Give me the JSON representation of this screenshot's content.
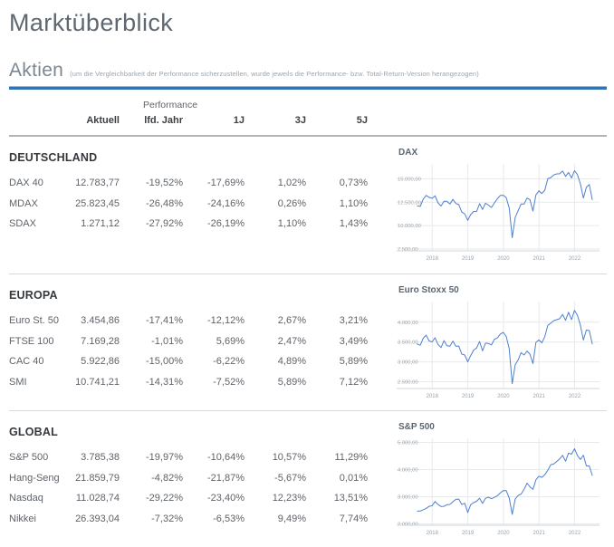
{
  "page": {
    "title": "Marktüberblick"
  },
  "aktien": {
    "heading": "Aktien",
    "note": "(um die Vergleichbarkeit der Performance sicherzustellen, wurde jeweils die Performance- bzw. Total-Return-Version herangezogen)"
  },
  "table": {
    "group_header": "Performance",
    "columns": [
      "Aktuell",
      "lfd. Jahr",
      "1J",
      "3J",
      "5J"
    ],
    "sections": [
      {
        "title": "DEUTSCHLAND",
        "rows": [
          {
            "name": "DAX 40",
            "values": [
              "12.783,77",
              "-19,52%",
              "-17,69%",
              "1,02%",
              "0,73%"
            ]
          },
          {
            "name": "MDAX",
            "values": [
              "25.823,45",
              "-26,48%",
              "-24,16%",
              "0,26%",
              "1,10%"
            ]
          },
          {
            "name": "SDAX",
            "values": [
              "1.271,12",
              "-27,92%",
              "-26,19%",
              "1,10%",
              "1,43%"
            ]
          }
        ]
      },
      {
        "title": "EUROPA",
        "rows": [
          {
            "name": "Euro St. 50",
            "values": [
              "3.454,86",
              "-17,41%",
              "-12,12%",
              "2,67%",
              "3,21%"
            ]
          },
          {
            "name": "FTSE 100",
            "values": [
              "7.169,28",
              "-1,01%",
              "5,69%",
              "2,47%",
              "3,49%"
            ]
          },
          {
            "name": "CAC 40",
            "values": [
              "5.922,86",
              "-15,00%",
              "-6,22%",
              "4,89%",
              "5,89%"
            ]
          },
          {
            "name": "SMI",
            "values": [
              "10.741,21",
              "-14,31%",
              "-7,52%",
              "5,89%",
              "7,12%"
            ]
          }
        ]
      },
      {
        "title": "GLOBAL",
        "rows": [
          {
            "name": "S&P 500",
            "values": [
              "3.785,38",
              "-19,97%",
              "-10,64%",
              "10,57%",
              "11,29%"
            ]
          },
          {
            "name": "Hang-Seng",
            "values": [
              "21.859,79",
              "-4,82%",
              "-21,87%",
              "-5,67%",
              "0,01%"
            ]
          },
          {
            "name": "Nasdaq",
            "values": [
              "11.028,74",
              "-29,22%",
              "-23,40%",
              "12,23%",
              "13,51%"
            ]
          },
          {
            "name": "Nikkei",
            "values": [
              "26.393,04",
              "-7,32%",
              "-6,53%",
              "9,49%",
              "7,74%"
            ]
          }
        ]
      }
    ]
  },
  "colors": {
    "accent_blue": "#3273b4",
    "chart_line": "#4e80ce",
    "gridline": "#e7e9eb",
    "axis": "#d2d5d8",
    "tick_text": "#9aa3ab"
  },
  "chart_data": [
    {
      "type": "line",
      "title": "DAX",
      "x_start": 2017.58,
      "x_step": 0.08333,
      "x_range": [
        2017.0,
        2022.7
      ],
      "y_range": [
        7300,
        16600
      ],
      "x_ticks": [
        {
          "label": "2018",
          "value": 2018
        },
        {
          "label": "2019",
          "value": 2019
        },
        {
          "label": "2020",
          "value": 2020
        },
        {
          "label": "2021",
          "value": 2021
        },
        {
          "label": "2022",
          "value": 2022
        }
      ],
      "y_ticks": [
        {
          "label": "15.000,00",
          "value": 15000
        },
        {
          "label": "12.500,00",
          "value": 12500
        },
        {
          "label": "10.000,00",
          "value": 10000
        },
        {
          "label": "7.500,00",
          "value": 7500
        }
      ],
      "values": [
        12118,
        12056,
        12829,
        13230,
        13024,
        12918,
        13189,
        12436,
        12097,
        12612,
        12604,
        12306,
        12805,
        12364,
        12247,
        11448,
        11257,
        10559,
        11173,
        11515,
        11526,
        12344,
        11727,
        12399,
        12189,
        11939,
        12428,
        12867,
        13236,
        13249,
        12982,
        11890,
        8700,
        10862,
        11587,
        12311,
        12313,
        12945,
        12761,
        11556,
        13291,
        13719,
        13433,
        13786,
        15008,
        15136,
        15421,
        15531,
        15544,
        15835,
        15261,
        15689,
        15100,
        15885,
        15471,
        14461,
        12950,
        14098,
        14388,
        12784
      ]
    },
    {
      "type": "line",
      "title": "Euro Stoxx 50",
      "x_start": 2017.58,
      "x_step": 0.08333,
      "x_range": [
        2017.0,
        2022.7
      ],
      "y_range": [
        2330,
        4520
      ],
      "x_ticks": [
        {
          "label": "2018",
          "value": 2018
        },
        {
          "label": "2019",
          "value": 2019
        },
        {
          "label": "2020",
          "value": 2020
        },
        {
          "label": "2021",
          "value": 2021
        },
        {
          "label": "2022",
          "value": 2022
        }
      ],
      "y_ticks": [
        {
          "label": "4.000,00",
          "value": 4000
        },
        {
          "label": "3.500,00",
          "value": 3500
        },
        {
          "label": "3.000,00",
          "value": 3000
        },
        {
          "label": "2.500,00",
          "value": 2500
        }
      ],
      "values": [
        3449,
        3421,
        3595,
        3674,
        3527,
        3504,
        3609,
        3439,
        3362,
        3537,
        3407,
        3396,
        3525,
        3393,
        3399,
        3197,
        3173,
        3001,
        3159,
        3298,
        3352,
        3515,
        3280,
        3474,
        3467,
        3427,
        3569,
        3604,
        3704,
        3745,
        3641,
        3329,
        2450,
        2928,
        3050,
        3234,
        3174,
        3273,
        3194,
        2958,
        3493,
        3553,
        3481,
        3636,
        3919,
        3974,
        4039,
        4064,
        4089,
        4196,
        4048,
        4251,
        4063,
        4298,
        4175,
        3924,
        3550,
        3803,
        3789,
        3455
      ]
    },
    {
      "type": "line",
      "title": "S&P 500",
      "x_start": 2017.58,
      "x_step": 0.08333,
      "x_range": [
        2017.0,
        2022.7
      ],
      "y_range": [
        1950,
        5150
      ],
      "x_ticks": [
        {
          "label": "2018",
          "value": 2018
        },
        {
          "label": "2019",
          "value": 2019
        },
        {
          "label": "2020",
          "value": 2020
        },
        {
          "label": "2021",
          "value": 2021
        },
        {
          "label": "2022",
          "value": 2022
        }
      ],
      "y_ticks": [
        {
          "label": "5.000,00",
          "value": 5000
        },
        {
          "label": "4.000,00",
          "value": 4000
        },
        {
          "label": "3.000,00",
          "value": 3000
        },
        {
          "label": "2.000,00",
          "value": 2000
        }
      ],
      "values": [
        2470,
        2472,
        2519,
        2575,
        2648,
        2674,
        2824,
        2714,
        2641,
        2648,
        2705,
        2718,
        2816,
        2902,
        2914,
        2712,
        2760,
        2416,
        2704,
        2784,
        2834,
        2946,
        2752,
        2942,
        2980,
        2926,
        2977,
        3038,
        3141,
        3231,
        3226,
        2954,
        2350,
        2912,
        3044,
        3100,
        3271,
        3500,
        3363,
        3270,
        3622,
        3756,
        3714,
        3811,
        3973,
        4181,
        4204,
        4298,
        4395,
        4523,
        4308,
        4605,
        4567,
        4766,
        4516,
        4374,
        4530,
        4132,
        4132,
        3785
      ]
    }
  ]
}
